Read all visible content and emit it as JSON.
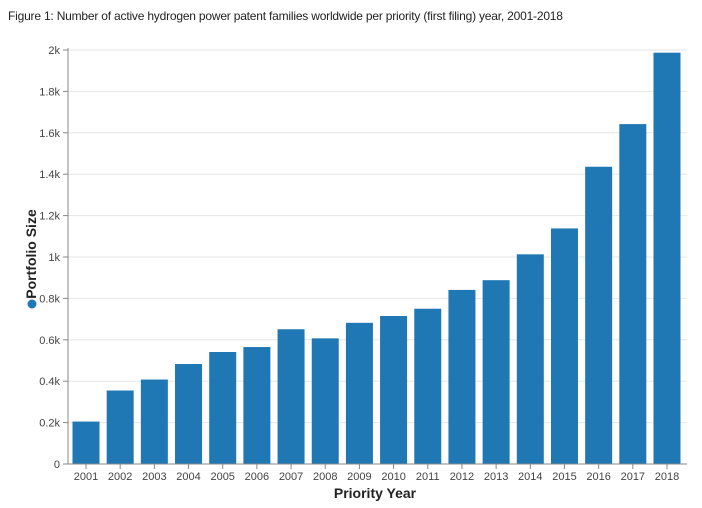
{
  "chart_data": {
    "type": "bar",
    "title": "Figure 1: Number of active hydrogen power patent families worldwide per priority (first filing) year, 2001-2018",
    "xlabel": "Priority Year",
    "ylabel": "Portfolio Size",
    "categories": [
      "2001",
      "2002",
      "2003",
      "2004",
      "2005",
      "2006",
      "2007",
      "2008",
      "2009",
      "2010",
      "2011",
      "2012",
      "2013",
      "2014",
      "2015",
      "2016",
      "2017",
      "2018"
    ],
    "values": [
      205,
      355,
      408,
      483,
      541,
      565,
      651,
      607,
      682,
      715,
      750,
      841,
      888,
      1013,
      1138,
      1436,
      1642,
      1987
    ],
    "ylim": [
      0,
      2000
    ],
    "yticks": [
      0,
      200,
      400,
      600,
      800,
      1000,
      1200,
      1400,
      1600,
      1800,
      2000
    ],
    "ytick_labels": [
      "0",
      "0.2k",
      "0.4k",
      "0.6k",
      "0.8k",
      "1k",
      "1.2k",
      "1.4k",
      "1.6k",
      "1.8k",
      "2k"
    ],
    "bar_color": "#1f77b4",
    "legend_marker_color": "#1f77b4",
    "grid": true
  }
}
